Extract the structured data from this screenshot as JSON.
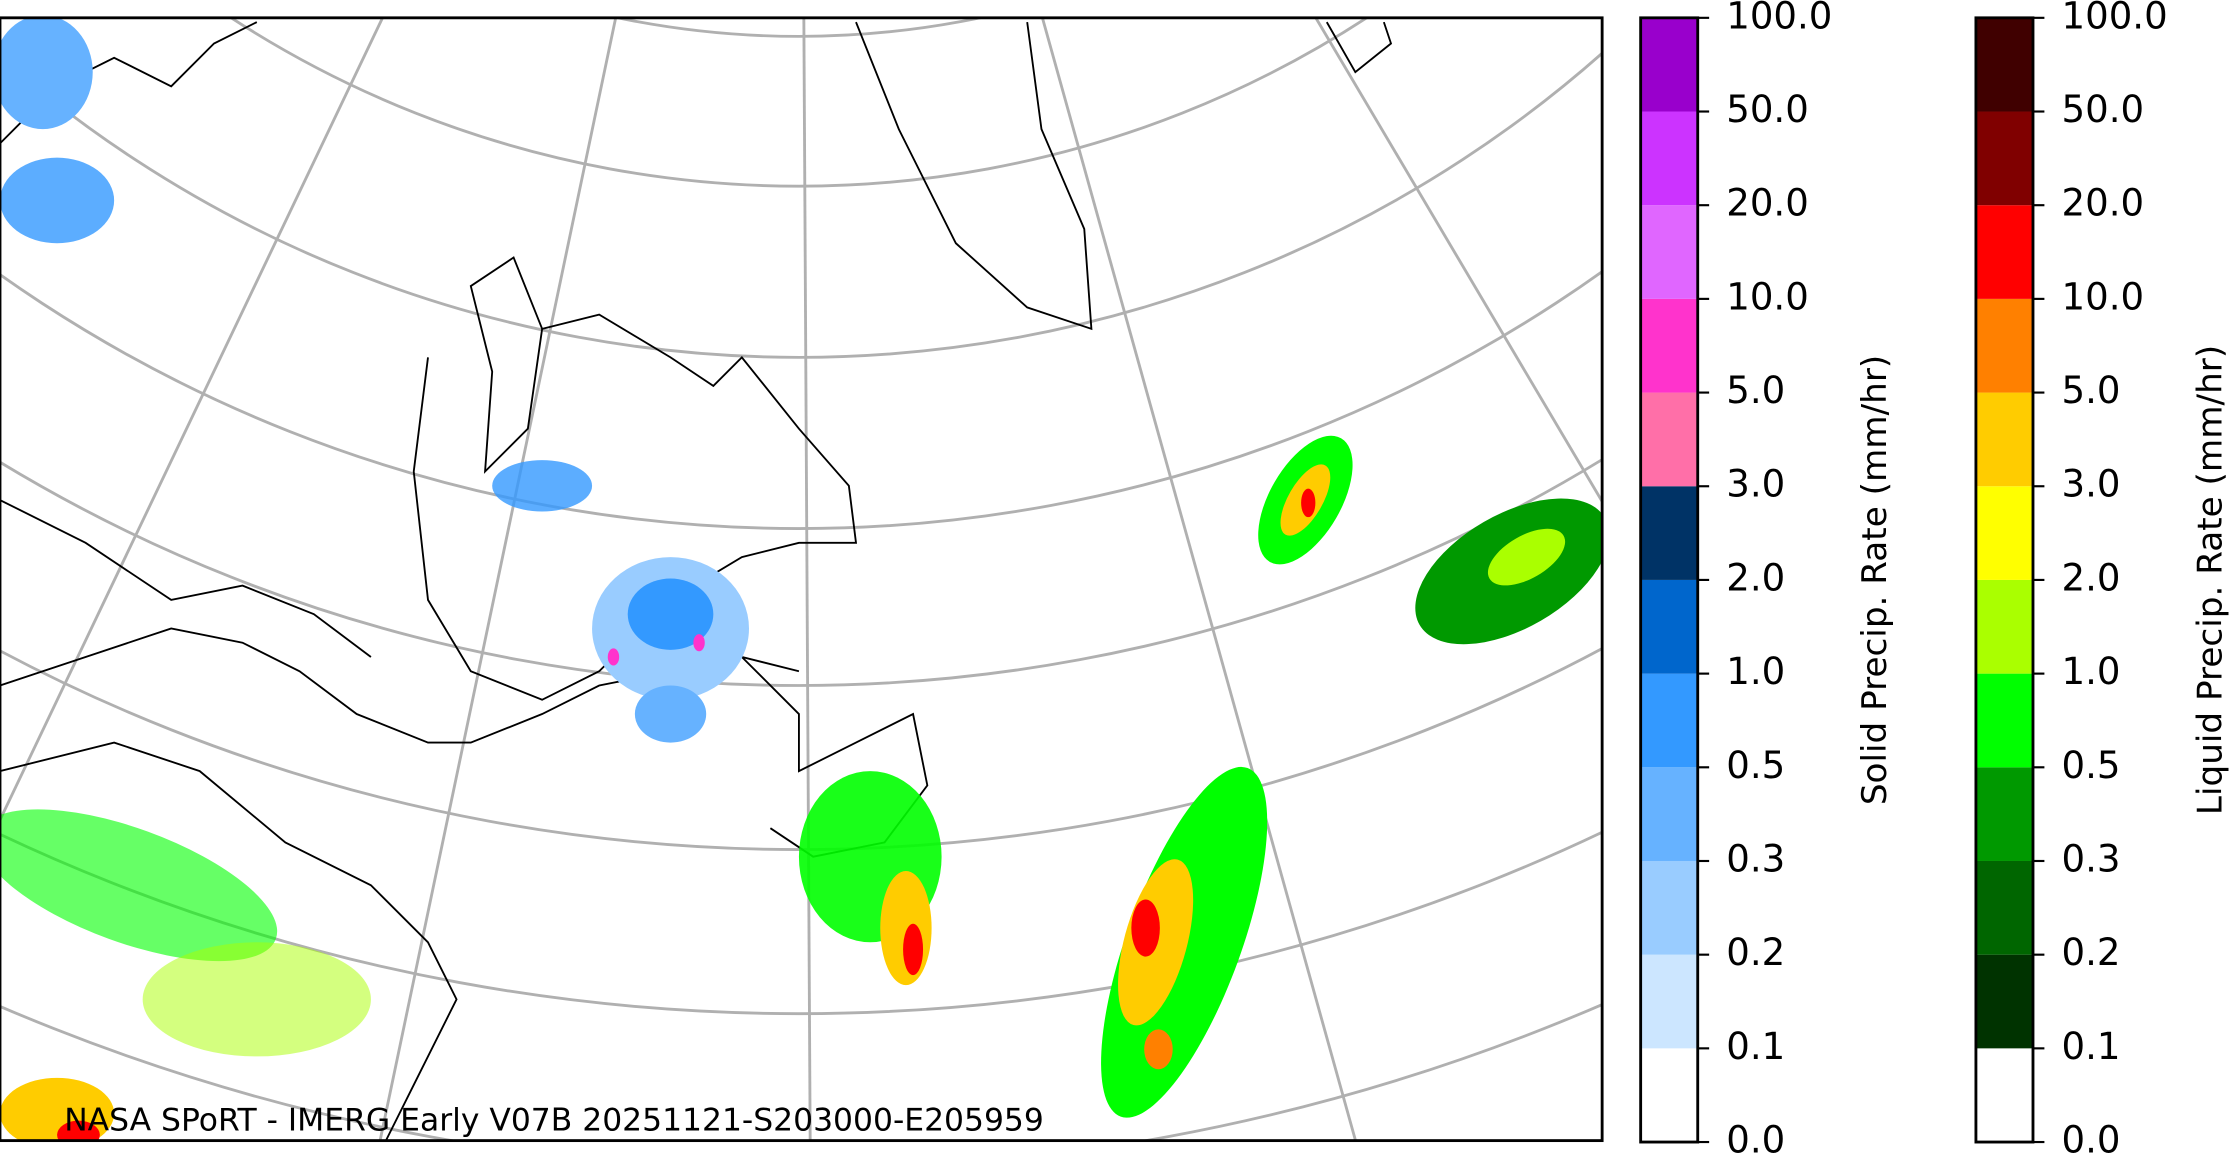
{
  "map": {
    "caption": "NASA SPoRT - IMERG Early V07B 20251121-S203000-E205959"
  },
  "colorbars": [
    {
      "label": "Solid Precip. Rate (mm/hr)",
      "ticks": [
        "0.0",
        "0.1",
        "0.2",
        "0.3",
        "0.5",
        "1.0",
        "2.0",
        "3.0",
        "5.0",
        "10.0",
        "20.0",
        "50.0",
        "100.0"
      ],
      "colors": [
        "#ffffff",
        "#cce6ff",
        "#99ccff",
        "#66b2ff",
        "#3399ff",
        "#0066cc",
        "#003366",
        "#ff6fa8",
        "#ff33cc",
        "#e066ff",
        "#cc33ff",
        "#9900cc"
      ]
    },
    {
      "label": "Liquid Precip. Rate (mm/hr)",
      "ticks": [
        "0.0",
        "0.1",
        "0.2",
        "0.3",
        "0.5",
        "1.0",
        "2.0",
        "3.0",
        "5.0",
        "10.0",
        "20.0",
        "50.0",
        "100.0"
      ],
      "colors": [
        "#ffffff",
        "#003300",
        "#006600",
        "#009900",
        "#00ff00",
        "#aaff00",
        "#ffff00",
        "#ffcc00",
        "#ff8000",
        "#ff0000",
        "#800000",
        "#400000"
      ]
    }
  ]
}
